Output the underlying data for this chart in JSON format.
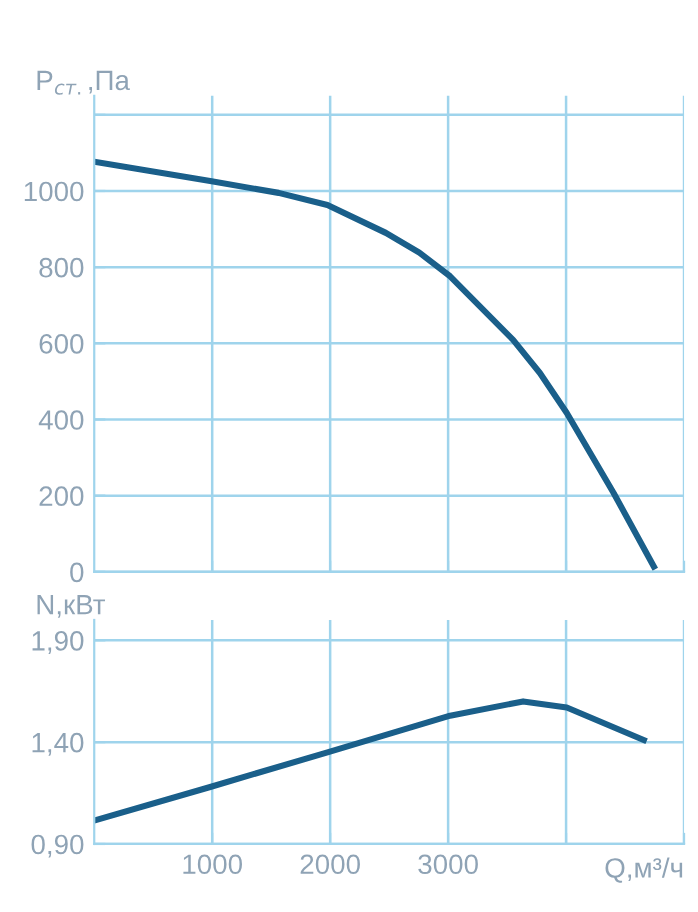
{
  "chart_data": [
    {
      "type": "line",
      "ylabel": "P$_{ст.}$,Па",
      "x": [
        0,
        983,
        1563,
        1977,
        2472,
        2756,
        3017,
        3551,
        3778,
        4006,
        4403,
        4744
      ],
      "series": [
        {
          "color": "#1a5f8a",
          "values": [
            1077,
            1026,
            995,
            963,
            890,
            838,
            776,
            609,
            522,
            417,
            207,
            14
          ]
        }
      ],
      "xlim": [
        0,
        5000
      ],
      "xticks": [
        {
          "value": 1000,
          "label": null
        },
        {
          "value": 2000,
          "label": null
        },
        {
          "value": 3000,
          "label": null
        },
        {
          "value": 4000,
          "label": null
        },
        {
          "value": 5000,
          "label": null
        }
      ],
      "ylim": [
        0,
        1250
      ],
      "yticks": [
        0,
        200,
        400,
        600,
        800,
        1000,
        {
          "value": 1200,
          "label": null
        }
      ],
      "grid": true,
      "tick_labels": "y",
      "legend": false
    },
    {
      "type": "line",
      "ylabel": "N,кВт",
      "xlabel": "Q,м³/ч",
      "x": [
        0,
        983,
        1977,
        3017,
        3636,
        4006,
        4659
      ],
      "series": [
        {
          "color": "#1a5f8a",
          "values": [
            1.015,
            1.18,
            1.35,
            1.53,
            1.6,
            1.57,
            1.41
          ]
        }
      ],
      "xlim": [
        0,
        5000
      ],
      "xticks": [
        1000,
        2000,
        3000,
        {
          "value": 4000,
          "label": null
        },
        {
          "value": 5000,
          "label": null
        }
      ],
      "ylim": [
        0.9,
        2.0
      ],
      "yticks": [
        {
          "value": 0.9,
          "label": "0,90"
        },
        {
          "value": 1.4,
          "label": "1,40"
        },
        {
          "value": 1.9,
          "label": "1,90"
        }
      ],
      "grid": true,
      "legend": false
    }
  ]
}
